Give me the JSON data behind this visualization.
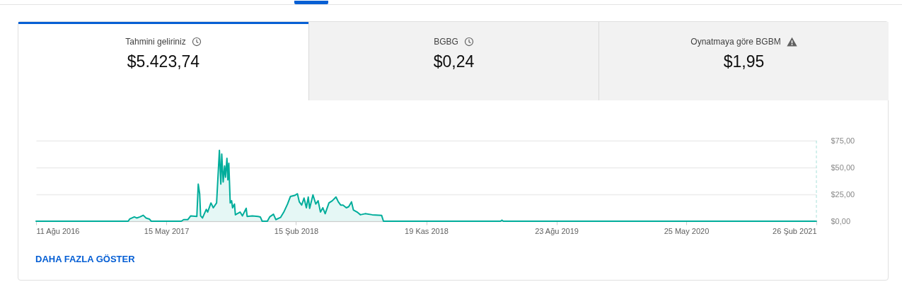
{
  "chart_data": [
    {
      "type": "other",
      "title": "Tahmini geliriniz",
      "annotations": [
        "$5.423,74"
      ]
    },
    {
      "type": "other",
      "title": "BGBG",
      "annotations": [
        "$0,24"
      ]
    },
    {
      "type": "other",
      "title": "Oynatmaya göre BGBM",
      "annotations": [
        "$1,95"
      ]
    },
    {
      "type": "area",
      "color": "#00ad9b",
      "x": [
        "2016-08-11",
        "2017-02-23",
        "2017-02-26",
        "2017-03-08",
        "2017-03-13",
        "2017-03-20",
        "2017-03-27",
        "2017-04-02",
        "2017-04-09",
        "2017-04-13",
        "2017-06-16",
        "2017-06-21",
        "2017-06-30",
        "2017-07-06",
        "2017-07-19",
        "2017-07-22",
        "2017-07-25",
        "2017-07-27",
        "2017-07-31",
        "2017-08-08",
        "2017-08-11",
        "2017-08-18",
        "2017-08-23",
        "2017-08-30",
        "2017-09-05",
        "2017-09-08",
        "2017-09-10",
        "2017-09-13",
        "2017-09-16",
        "2017-09-18",
        "2017-09-21",
        "2017-09-23",
        "2017-09-25",
        "2017-09-28",
        "2017-10-01",
        "2017-10-03",
        "2017-10-07",
        "2017-10-09",
        "2017-10-19",
        "2017-10-24",
        "2017-11-01",
        "2017-11-03",
        "2017-11-14",
        "2017-11-26",
        "2017-12-01",
        "2017-12-05",
        "2017-12-16",
        "2017-12-21",
        "2017-12-29",
        "2018-01-03",
        "2018-01-13",
        "2018-01-20",
        "2018-01-28",
        "2018-02-03",
        "2018-02-12",
        "2018-02-18",
        "2018-02-22",
        "2018-02-27",
        "2018-03-04",
        "2018-03-09",
        "2018-03-13",
        "2018-03-16",
        "2018-03-23",
        "2018-03-29",
        "2018-04-03",
        "2018-04-08",
        "2018-04-13",
        "2018-04-18",
        "2018-04-26",
        "2018-05-03",
        "2018-05-11",
        "2018-05-16",
        "2018-05-21",
        "2018-05-26",
        "2018-06-02",
        "2018-06-07",
        "2018-06-13",
        "2018-06-17",
        "2018-06-25",
        "2018-07-02",
        "2018-07-12",
        "2018-07-27",
        "2018-08-16",
        "2018-08-20",
        "2019-04-26",
        "2019-04-29",
        "2019-05-02",
        "2021-02-26"
      ],
      "values": [
        0,
        0,
        2,
        4,
        3,
        4,
        5.5,
        3,
        2,
        0,
        0,
        1.5,
        1.5,
        5,
        4.5,
        34.5,
        25.5,
        5,
        3,
        11,
        8.5,
        17,
        12.5,
        17,
        66,
        34.5,
        62.5,
        36.5,
        51.5,
        41,
        58.5,
        38.5,
        54,
        17,
        19,
        12.5,
        16,
        6,
        8.5,
        5,
        12,
        4.5,
        5,
        4.5,
        4,
        0,
        0,
        4,
        6.5,
        1.5,
        3.5,
        8.5,
        16,
        23,
        24,
        25.5,
        18,
        15,
        21.5,
        12.5,
        22.5,
        12,
        24.5,
        16,
        19,
        8.5,
        12.5,
        7,
        17,
        19,
        22.5,
        18,
        15,
        15,
        12.5,
        13.5,
        18,
        10.5,
        8.5,
        6,
        7,
        6,
        5.5,
        0,
        0,
        1,
        0,
        0
      ],
      "xlim": [
        "2016-08-11",
        "2021-02-26"
      ],
      "ylim": [
        0,
        75
      ],
      "xticks": [
        {
          "value": "2016-08-11",
          "label": "11 Ağu 2016"
        },
        {
          "value": "2017-05-15",
          "label": "15 May 2017"
        },
        {
          "value": "2018-02-15",
          "label": "15 Şub 2018"
        },
        {
          "value": "2018-11-19",
          "label": "19 Kas 2018"
        },
        {
          "value": "2019-08-23",
          "label": "23 Ağu 2019"
        },
        {
          "value": "2020-05-25",
          "label": "25 May 2020"
        },
        {
          "value": "2021-02-26",
          "label": "26 Şub 2021"
        }
      ],
      "yticks": [
        {
          "value": 0,
          "label": "$0,00"
        },
        {
          "value": 25,
          "label": "$25,00"
        },
        {
          "value": 50,
          "label": "$50,00"
        },
        {
          "value": 75,
          "label": "$75,00"
        }
      ],
      "grid": "y",
      "ref_lines": [
        {
          "axis": "x",
          "value": "2021-02-26",
          "color": "#a8e0da",
          "line_style": "dashed"
        }
      ],
      "annotations": [
        "DAHA FAZLA GÖSTER"
      ]
    }
  ]
}
